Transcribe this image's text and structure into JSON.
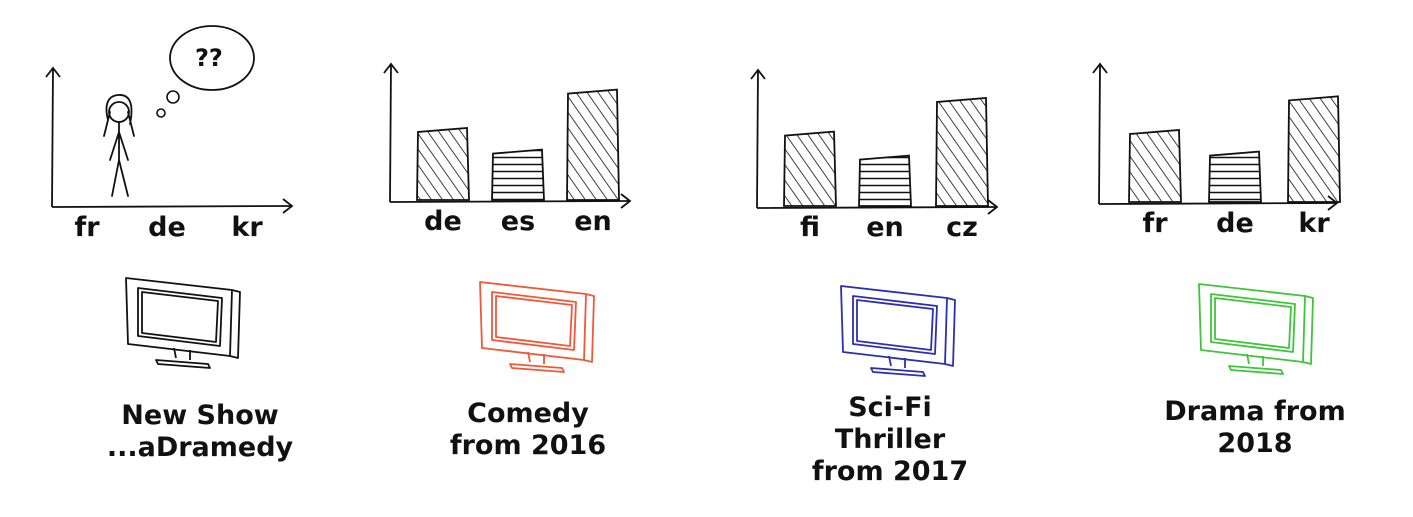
{
  "colors": {
    "ink": "#111111",
    "new_show_tv": "#111111",
    "comedy_tv": "#f0583a",
    "scifi_tv": "#2b2fb0",
    "drama_tv": "#3fc43a"
  },
  "thought_bubble": {
    "text": "??"
  },
  "panels": [
    {
      "id": "new-show",
      "ticks": [
        "fr",
        "de",
        "kr"
      ],
      "values": [],
      "caption": "New Show\n...aDramedy",
      "tv_color": "#111111",
      "icon": "tv-icon",
      "has_person": true
    },
    {
      "id": "comedy",
      "ticks": [
        "de",
        "es",
        "en"
      ],
      "values": [
        0.6,
        0.42,
        0.92
      ],
      "caption": "Comedy\nfrom 2016",
      "tv_color": "#f0583a",
      "icon": "tv-icon",
      "has_person": false
    },
    {
      "id": "scifi",
      "ticks": [
        "fi",
        "en",
        "cz"
      ],
      "values": [
        0.62,
        0.42,
        0.9
      ],
      "caption": "Sci-Fi\nThriller\nfrom 2017",
      "tv_color": "#2b2fb0",
      "icon": "tv-icon",
      "has_person": false
    },
    {
      "id": "drama",
      "ticks": [
        "fr",
        "de",
        "kr"
      ],
      "values": [
        0.6,
        0.42,
        0.88
      ],
      "caption": "Drama from\n2018",
      "tv_color": "#3fc43a",
      "icon": "tv-icon",
      "has_person": false
    }
  ]
}
